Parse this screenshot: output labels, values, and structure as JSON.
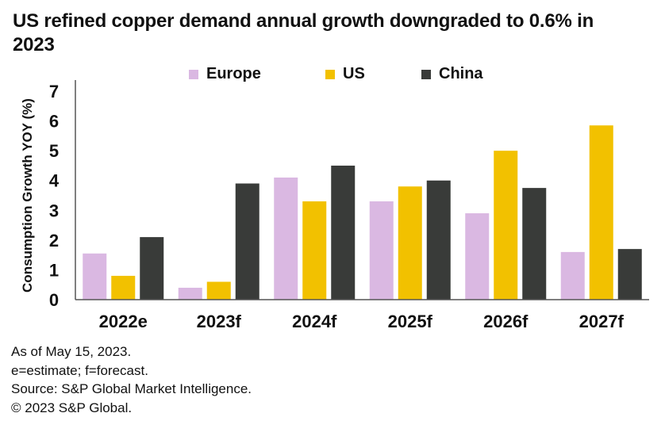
{
  "title": "US refined copper demand annual growth downgraded to 0.6% in 2023",
  "footnotes": [
    "As of May 15, 2023.",
    "e=estimate; f=forecast.",
    "Source: S&P Global Market Intelligence.",
    "© 2023 S&P Global."
  ],
  "chart_data": {
    "type": "bar",
    "title": "US refined copper demand annual growth downgraded to 0.6% in 2023",
    "xlabel": "",
    "ylabel": "Consumption Growth YOY (%)",
    "ylim": [
      0,
      7
    ],
    "yticks": [
      0,
      1,
      2,
      3,
      4,
      5,
      6,
      7
    ],
    "grid": false,
    "legend_position": "top",
    "categories": [
      "2022e",
      "2023f",
      "2024f",
      "2025f",
      "2026f",
      "2027f"
    ],
    "series": [
      {
        "name": "Europe",
        "color": "#dab8e2",
        "values": [
          1.55,
          0.4,
          4.1,
          3.3,
          2.9,
          1.6
        ]
      },
      {
        "name": "US",
        "color": "#f2c100",
        "values": [
          0.8,
          0.6,
          3.3,
          3.8,
          5.0,
          5.85
        ]
      },
      {
        "name": "China",
        "color": "#393b39",
        "values": [
          2.1,
          3.9,
          4.5,
          4.0,
          3.75,
          1.7
        ]
      }
    ]
  }
}
